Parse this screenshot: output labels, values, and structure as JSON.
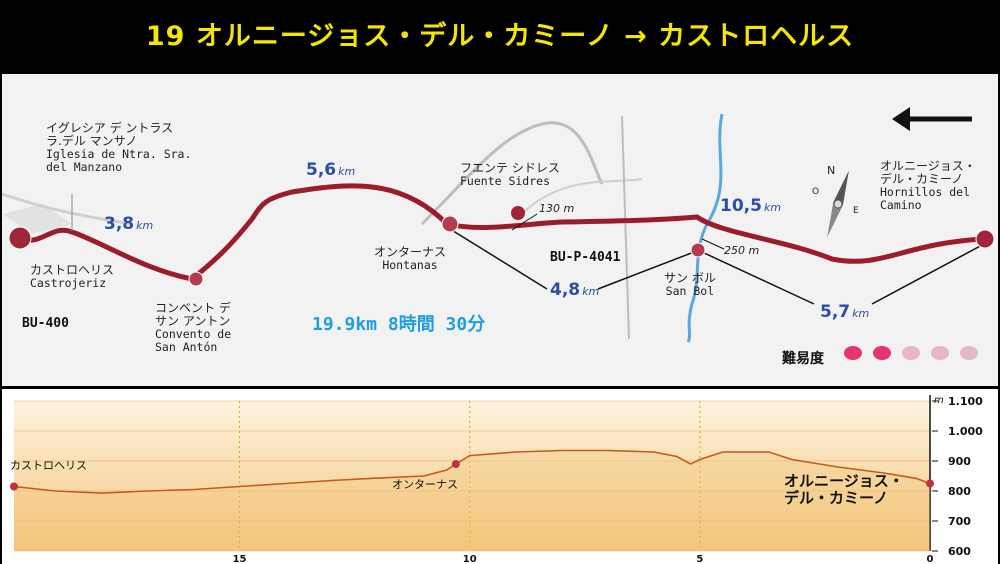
{
  "title": "19 オルニージョス・デル・カミーノ → カストロヘルス",
  "places": {
    "iglesia": {
      "jp": "イグレシア デ ントラス ラ.デル マンサノ",
      "jp1": "イグレシア デ ントラス",
      "jp2": "ラ.デル マンサノ",
      "es1": "Iglesia de Ntra. Sra.",
      "es2": "del Manzano"
    },
    "castrojeriz": {
      "jp": "カストロヘリス",
      "es": "Castrojeriz"
    },
    "convento": {
      "jp1": "コンベント デ",
      "jp2": "サン アントン",
      "es1": "Convento de",
      "es2": "San Antón"
    },
    "fuente": {
      "jp": "フエンテ シドレス",
      "es": "Fuente Sidres"
    },
    "hontanas": {
      "jp": "オンターナス",
      "es": "Hontanas"
    },
    "sanbol": {
      "jp": "サン ボル",
      "es": "San Bol"
    },
    "hornillos": {
      "jp1": "オルニージョス・",
      "jp2": "デル・カミーノ",
      "es1": "Hornillos del",
      "es2": "Camino"
    }
  },
  "distances": [
    {
      "value": "3,8",
      "unit": "km"
    },
    {
      "value": "5,6",
      "unit": "km"
    },
    {
      "value": "4,8",
      "unit": "km"
    },
    {
      "value": "10,5",
      "unit": "km"
    },
    {
      "value": "5,7",
      "unit": "km"
    }
  ],
  "roads": {
    "bu400": "BU-400",
    "bup4041": "BU-P-4041"
  },
  "altitude_marks": {
    "fuente": "130 m",
    "sanbol": "250 m"
  },
  "summary": "19.9km 8時間 30分",
  "difficulty": {
    "label": "難易度",
    "level": 2,
    "max": 5,
    "active_color": "#e8356b",
    "inactive_color": "#e7b7c8"
  },
  "compass": {
    "n": "N",
    "o": "O",
    "e": "E"
  },
  "colors": {
    "route": "#9b1d2b",
    "profile_fill": "#f3c67a",
    "profile_line": "#c55a1c",
    "map_bg": "#f2f2f2",
    "river": "#5aa8e0",
    "title": "#f5e600"
  },
  "chart_data": {
    "type": "area",
    "x": [
      19.9,
      19.0,
      18.0,
      17.0,
      16.0,
      15.0,
      14.0,
      13.0,
      12.0,
      11.0,
      10.5,
      10.3,
      10.0,
      9.0,
      8.0,
      7.0,
      6.0,
      5.5,
      5.2,
      5.0,
      4.5,
      3.5,
      3.0,
      2.0,
      1.0,
      0.3,
      0.0
    ],
    "y": [
      815,
      800,
      793,
      800,
      805,
      815,
      825,
      835,
      843,
      850,
      870,
      890,
      918,
      930,
      935,
      935,
      930,
      915,
      890,
      905,
      930,
      930,
      905,
      880,
      860,
      842,
      825
    ],
    "x_ticks": [
      "15",
      "10",
      "5",
      "0"
    ],
    "xlim": [
      19.9,
      0
    ],
    "y_unit": "m",
    "y_ticks": [
      "1.100",
      "1.000",
      "900",
      "800",
      "700",
      "600"
    ],
    "ylim": [
      600,
      1100
    ],
    "labels": {
      "start": "カストロヘリス",
      "mid": "オンターナス",
      "end1": "オルニージョス・",
      "end2": "デル・カミーノ"
    }
  }
}
